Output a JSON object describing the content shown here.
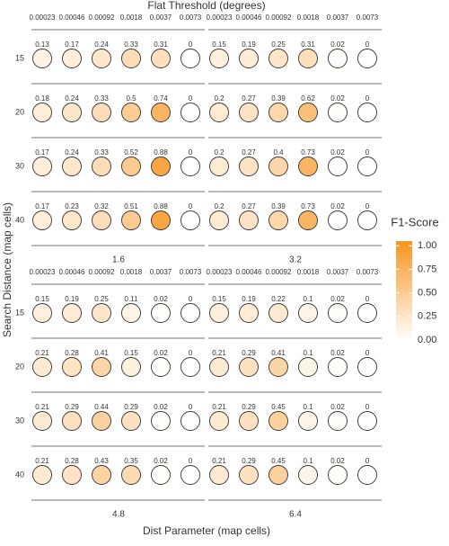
{
  "chart_data": {
    "type": "dot-matrix",
    "x_label": "Flat Threshold (degrees)",
    "y_label": "Search Distance (map cells)",
    "facet_label": "Dist Parameter (map cells)",
    "columns": [
      0.00023,
      0.00046,
      0.00092,
      0.0018,
      0.0037,
      0.0073
    ],
    "rows": [
      15,
      20,
      30,
      40
    ],
    "panels": [
      {
        "name": 1.6,
        "values": [
          [
            0.13,
            0.17,
            0.24,
            0.33,
            0.31,
            0
          ],
          [
            0.18,
            0.24,
            0.33,
            0.5,
            0.74,
            0
          ],
          [
            0.17,
            0.24,
            0.33,
            0.52,
            0.88,
            0
          ],
          [
            0.17,
            0.23,
            0.32,
            0.51,
            0.88,
            0
          ]
        ]
      },
      {
        "name": 3.2,
        "values": [
          [
            0.15,
            0.19,
            0.25,
            0.31,
            0.02,
            0
          ],
          [
            0.2,
            0.27,
            0.39,
            0.62,
            0.02,
            0
          ],
          [
            0.2,
            0.27,
            0.4,
            0.73,
            0.02,
            0
          ],
          [
            0.2,
            0.27,
            0.39,
            0.73,
            0.02,
            0
          ]
        ]
      },
      {
        "name": 4.8,
        "values": [
          [
            0.15,
            0.19,
            0.25,
            0.11,
            0.02,
            0
          ],
          [
            0.21,
            0.28,
            0.41,
            0.15,
            0.02,
            0
          ],
          [
            0.21,
            0.29,
            0.44,
            0.29,
            0.02,
            0
          ],
          [
            0.21,
            0.28,
            0.43,
            0.35,
            0.02,
            0
          ]
        ]
      },
      {
        "name": 6.4,
        "values": [
          [
            0.15,
            0.19,
            0.22,
            0.1,
            0.02,
            0
          ],
          [
            0.21,
            0.29,
            0.41,
            0.1,
            0.02,
            0
          ],
          [
            0.21,
            0.29,
            0.45,
            0.1,
            0.02,
            0
          ],
          [
            0.21,
            0.29,
            0.45,
            0.1,
            0.02,
            0
          ]
        ]
      }
    ],
    "legend_title": "F1-Score",
    "color_low": "#ffffff",
    "color_high": "#f7941d",
    "clim": [
      0,
      1.05
    ],
    "cticks": [
      {
        "value": 0,
        "label": "0.00"
      },
      {
        "value": 0.25,
        "label": "0.25"
      },
      {
        "value": 0.5,
        "label": "0.50"
      },
      {
        "value": 0.75,
        "label": "0.75"
      },
      {
        "value": 1,
        "label": "1.00"
      }
    ]
  }
}
